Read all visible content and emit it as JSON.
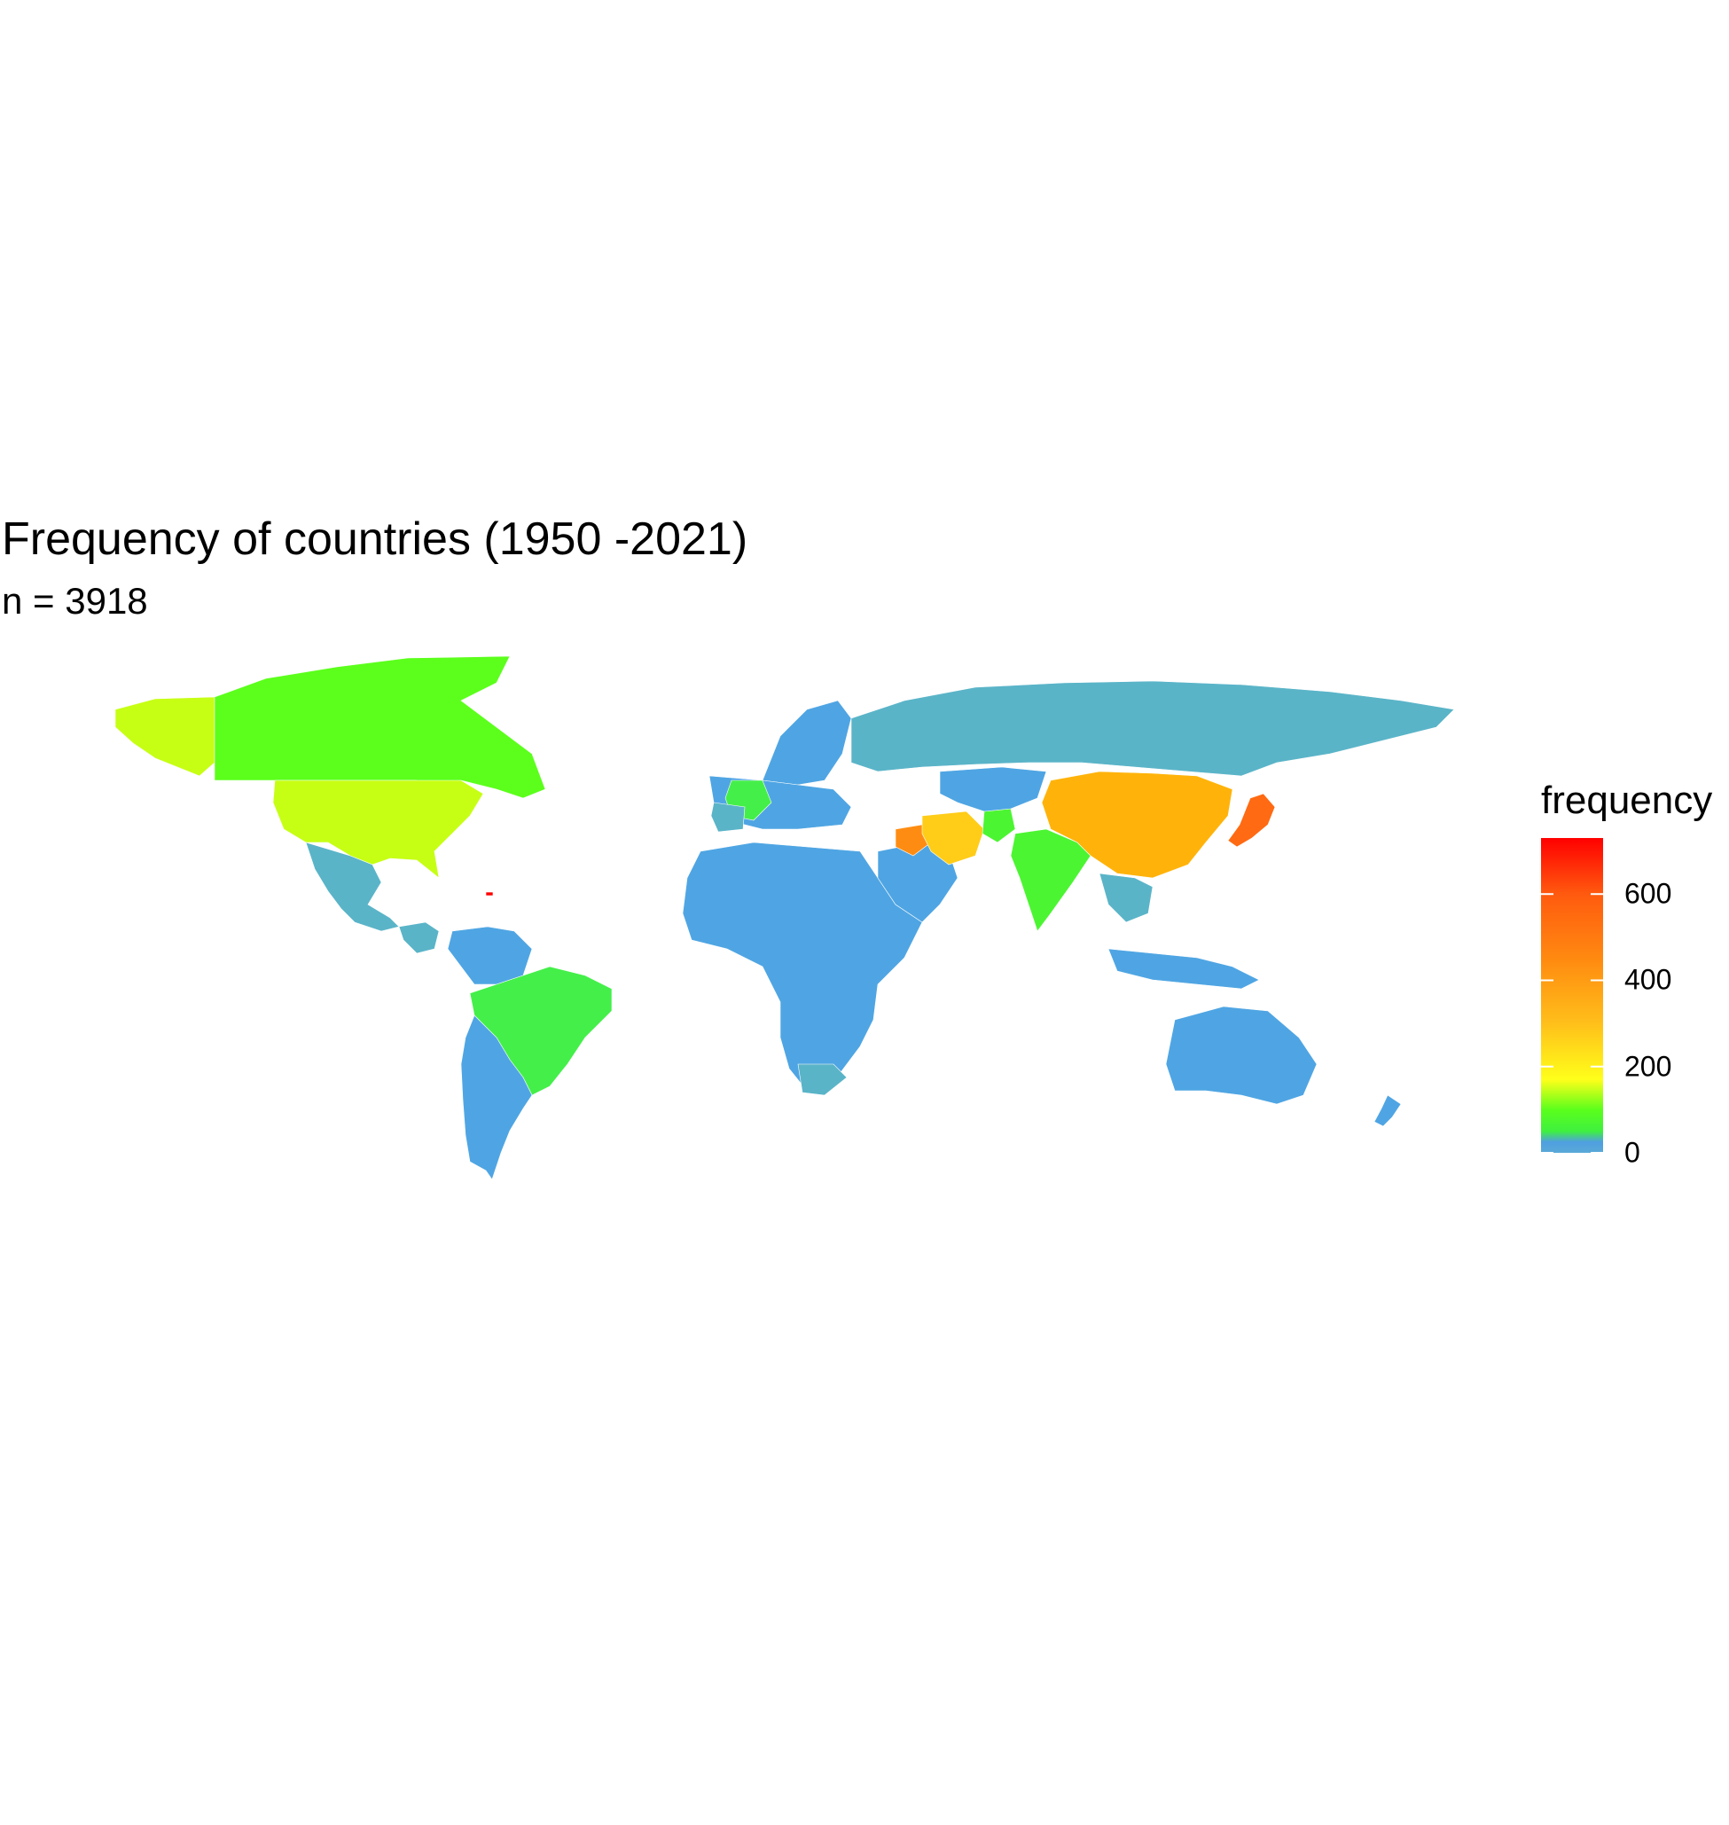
{
  "chart_data": {
    "type": "choropleth",
    "title": "Frequency of countries (1950 -2021)",
    "subtitle": "n = 3918",
    "legend": {
      "title": "frequency",
      "placement": "right",
      "ticks": [
        "0",
        "200",
        "400",
        "600"
      ],
      "tick_values": [
        0,
        200,
        400,
        600
      ],
      "range": [
        0,
        730
      ],
      "color_stops": [
        {
          "value": 0,
          "color": "#5aa9d8"
        },
        {
          "value": 25,
          "color": "#4f9fe0"
        },
        {
          "value": 50,
          "color": "#3ff03f"
        },
        {
          "value": 100,
          "color": "#5bff1b"
        },
        {
          "value": 170,
          "color": "#ffff1a"
        },
        {
          "value": 300,
          "color": "#ffbf1a"
        },
        {
          "value": 450,
          "color": "#ff8a10"
        },
        {
          "value": 600,
          "color": "#ff5a0f"
        },
        {
          "value": 730,
          "color": "#ff0000"
        }
      ]
    },
    "regions": [
      {
        "name": "Canada",
        "value": 90,
        "color": "#5bff1b"
      },
      {
        "name": "United States",
        "value": 150,
        "color": "#c6ff14"
      },
      {
        "name": "Alaska",
        "value": 150,
        "color": "#c6ff14"
      },
      {
        "name": "Greenland",
        "value": 80,
        "color": "#5bff1b"
      },
      {
        "name": "Mexico",
        "value": 10,
        "color": "#5ab4c8"
      },
      {
        "name": "Brazil",
        "value": 60,
        "color": "#44ef49"
      },
      {
        "name": "South America (other)",
        "value": 5,
        "color": "#4fa5e3"
      },
      {
        "name": "Russia",
        "value": 10,
        "color": "#5ab4c8"
      },
      {
        "name": "China",
        "value": 350,
        "color": "#ffb30a"
      },
      {
        "name": "Japan",
        "value": 550,
        "color": "#ff6a12"
      },
      {
        "name": "Iran",
        "value": 260,
        "color": "#ffcc18"
      },
      {
        "name": "Iraq",
        "value": 470,
        "color": "#ff8c12"
      },
      {
        "name": "India",
        "value": 70,
        "color": "#4cf532"
      },
      {
        "name": "Afghanistan",
        "value": 70,
        "color": "#4cf532"
      },
      {
        "name": "France",
        "value": 60,
        "color": "#44ef49"
      },
      {
        "name": "Australia",
        "value": 5,
        "color": "#4fa5e3"
      },
      {
        "name": "Africa",
        "value": 5,
        "color": "#4fa5e3"
      },
      {
        "name": "Puerto Rico",
        "value": 720,
        "color": "#ff0000"
      }
    ]
  }
}
